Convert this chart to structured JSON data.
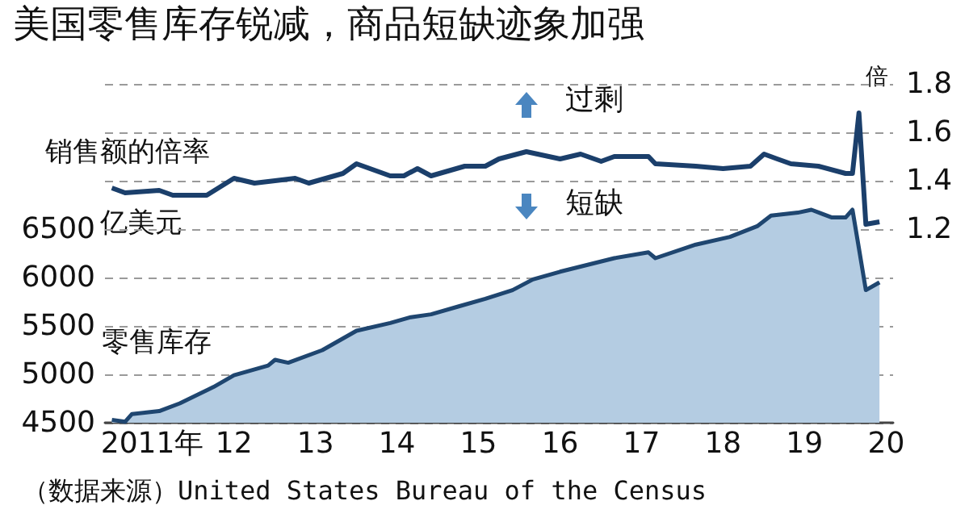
{
  "chart_data": {
    "type": "area",
    "title": "美国零售库存锐减，商品短缺迹象加强",
    "ylabel": "亿美元",
    "y2label": "倍",
    "annotations": [
      "过剩",
      "短缺",
      "（数据来源）United States Bureau of the Census"
    ],
    "series": [
      {
        "name": "零售库存",
        "color": "#b4cce2",
        "x": [
          "2011-01",
          "2011-03",
          "2011-04",
          "2011-08",
          "2011-11",
          "2012-04",
          "2012-07",
          "2012-12",
          "2013-01",
          "2013-03",
          "2013-08",
          "2014-01",
          "2014-06",
          "2014-09",
          "2014-12",
          "2015-04",
          "2015-08",
          "2015-12",
          "2016-03",
          "2016-07",
          "2017-03",
          "2017-08",
          "2017-09",
          "2018-03",
          "2018-08",
          "2018-12",
          "2019-02",
          "2019-06",
          "2019-08",
          "2019-11",
          "2020-01",
          "2020-02",
          "2020-03",
          "2020-04",
          "2020-06"
        ],
        "values": [
          4530,
          4510,
          4590,
          4620,
          4700,
          4870,
          4990,
          5090,
          5150,
          5120,
          5250,
          5450,
          5530,
          5590,
          5620,
          5700,
          5780,
          5870,
          5980,
          6060,
          6200,
          6260,
          6200,
          6340,
          6420,
          6530,
          6640,
          6670,
          6700,
          6620,
          6620,
          6700,
          6300,
          5870,
          5950
        ]
      },
      {
        "name": "销售额的倍率",
        "type": "line",
        "axis": "y2",
        "color": "#1b3f6b",
        "x": [
          "2011-01",
          "2011-03",
          "2011-08",
          "2011-10",
          "2012-03",
          "2012-07",
          "2012-10",
          "2013-01",
          "2013-04",
          "2013-06",
          "2013-11",
          "2014-01",
          "2014-06",
          "2014-08",
          "2014-10",
          "2014-12",
          "2015-05",
          "2015-08",
          "2015-10",
          "2016-02",
          "2016-07",
          "2016-10",
          "2017-01",
          "2017-03",
          "2017-08",
          "2017-09",
          "2018-03",
          "2018-07",
          "2018-11",
          "2019-01",
          "2019-03",
          "2019-05",
          "2019-09",
          "2020-01",
          "2020-02",
          "2020-03",
          "2020-04",
          "2020-06"
        ],
        "values": [
          1.37,
          1.35,
          1.36,
          1.34,
          1.34,
          1.41,
          1.39,
          1.4,
          1.41,
          1.39,
          1.43,
          1.47,
          1.42,
          1.42,
          1.45,
          1.42,
          1.46,
          1.46,
          1.49,
          1.52,
          1.49,
          1.51,
          1.48,
          1.5,
          1.5,
          1.47,
          1.46,
          1.45,
          1.46,
          1.51,
          1.49,
          1.47,
          1.46,
          1.43,
          1.43,
          1.68,
          1.22,
          1.23
        ]
      }
    ],
    "xlim": [
      "2010-12",
      "2020-08"
    ],
    "xticks": [
      {
        "value": "2011-07",
        "label": "2011年"
      },
      {
        "value": "2012-01",
        "label": null
      },
      {
        "value": "2012-07",
        "label": "12"
      },
      {
        "value": "2013-01",
        "label": null
      },
      {
        "value": "2013-07",
        "label": "13"
      },
      {
        "value": "2014-01",
        "label": null
      },
      {
        "value": "2014-07",
        "label": "14"
      },
      {
        "value": "2015-01",
        "label": null
      },
      {
        "value": "2015-07",
        "label": "15"
      },
      {
        "value": "2016-01",
        "label": null
      },
      {
        "value": "2016-07",
        "label": "16"
      },
      {
        "value": "2017-01",
        "label": null
      },
      {
        "value": "2017-07",
        "label": "17"
      },
      {
        "value": "2018-01",
        "label": null
      },
      {
        "value": "2018-07",
        "label": "18"
      },
      {
        "value": "2019-01",
        "label": null
      },
      {
        "value": "2019-07",
        "label": "19"
      },
      {
        "value": "2020-01",
        "label": null
      },
      {
        "value": "2020-07",
        "label": "20"
      }
    ],
    "ylim": [
      4500,
      8000
    ],
    "yticks": [
      4500,
      5000,
      5500,
      6000,
      6500
    ],
    "y2lim": [
      0.4,
      1.8
    ],
    "y2ticks": [
      1.2,
      1.4,
      1.6,
      1.8
    ],
    "grid": "y",
    "legend": false
  }
}
